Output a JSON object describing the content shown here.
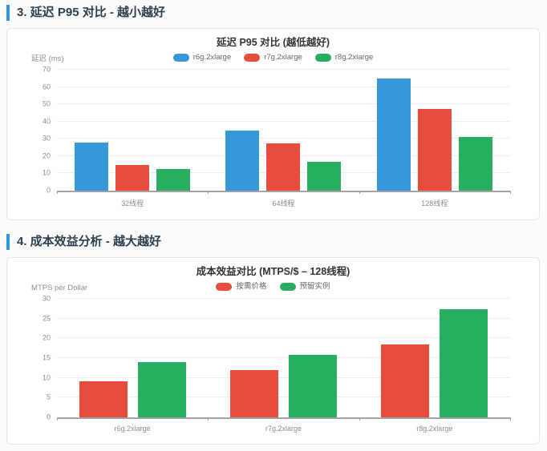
{
  "accent_color": "#3498db",
  "sections": [
    {
      "heading": "3. 延迟 P95 对比 - 越小越好"
    },
    {
      "heading": "4. 成本效益分析 - 越大越好"
    }
  ],
  "chart_data": [
    {
      "type": "bar",
      "title": "延迟 P95 对比 (越低越好)",
      "ylabel": "延迟 (ms)",
      "xlabel": "",
      "categories": [
        "32线程",
        "64线程",
        "128线程"
      ],
      "series": [
        {
          "name": "r6g.2xlarge",
          "color": "#3498db",
          "values": [
            28,
            35,
            65
          ]
        },
        {
          "name": "r7g.2xlarge",
          "color": "#e74c3c",
          "values": [
            15,
            27.5,
            47.5
          ]
        },
        {
          "name": "r8g.2xlarge",
          "color": "#27ae60",
          "values": [
            12.5,
            16.5,
            31
          ]
        }
      ],
      "ylim": [
        0,
        70
      ],
      "ytick_step": 10,
      "grid": true,
      "legend_position": "top"
    },
    {
      "type": "bar",
      "title": "成本效益对比 (MTPS/$ – 128线程)",
      "ylabel": "MTPS per Dollar",
      "xlabel": "",
      "categories": [
        "r6g.2xlarge",
        "r7g.2xlarge",
        "r8g.2xlarge"
      ],
      "series": [
        {
          "name": "按需价格",
          "color": "#e74c3c",
          "values": [
            9.2,
            12,
            18.5
          ]
        },
        {
          "name": "预留实例",
          "color": "#27ae60",
          "values": [
            14,
            15.8,
            27.3
          ]
        }
      ],
      "ylim": [
        0,
        30
      ],
      "ytick_step": 5,
      "grid": true,
      "legend_position": "top"
    }
  ]
}
